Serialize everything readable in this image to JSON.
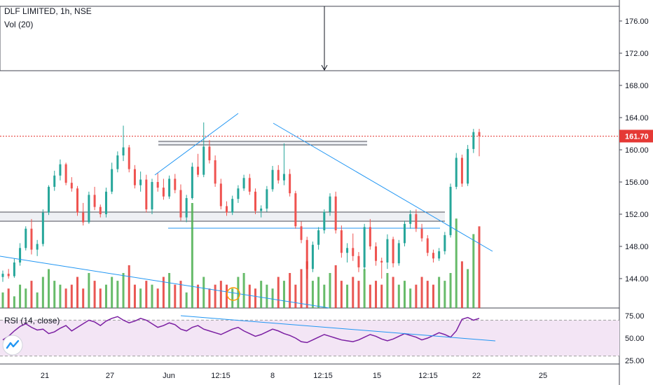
{
  "header": {
    "symbol_line": "DLF LIMITED, 1h, NSE",
    "volume_indicator": "Vol (20)"
  },
  "rsi": {
    "label": "RSI (14, close)",
    "levels": [
      "75.00",
      "50.00",
      "25.00"
    ]
  },
  "price_axis": {
    "ticks": [
      "176.00",
      "172.00",
      "168.00",
      "164.00",
      "160.00",
      "156.00",
      "152.00",
      "148.00",
      "144.00"
    ],
    "last_price": "161.70"
  },
  "time_axis": {
    "ticks": [
      "21",
      "27",
      "Jun",
      "12:15",
      "8",
      "12:15",
      "15",
      "12:15",
      "22",
      "25"
    ]
  },
  "colors": {
    "up": "#26a69a",
    "down": "#ef5350",
    "vol_up": "#4caf50",
    "vol_down": "#e53935",
    "trendline": "#2196f3",
    "rsi": "#7b1fa2",
    "rsi_band": "#f3e5f5",
    "last_price": "#e53935"
  },
  "icons": {
    "logo": "tradingview-logo-icon"
  },
  "chart_data": {
    "type": "candlestick",
    "symbol": "DLF LIMITED",
    "interval": "1h",
    "exchange": "NSE",
    "ylim": [
      142,
      178
    ],
    "last_price": 161.7,
    "candles": [
      [
        144.2,
        145.0,
        143.6,
        144.6
      ],
      [
        144.6,
        145.2,
        144.0,
        144.3
      ],
      [
        144.3,
        146.5,
        144.1,
        146.0
      ],
      [
        146.0,
        148.4,
        145.6,
        147.8
      ],
      [
        147.8,
        150.5,
        147.5,
        150.2
      ],
      [
        150.2,
        151.4,
        147.0,
        147.6
      ],
      [
        147.6,
        148.8,
        146.8,
        148.3
      ],
      [
        148.3,
        152.6,
        148.0,
        152.2
      ],
      [
        152.2,
        155.6,
        151.9,
        155.4
      ],
      [
        155.4,
        157.4,
        154.9,
        156.8
      ],
      [
        156.8,
        158.8,
        156.2,
        158.2
      ],
      [
        158.2,
        158.4,
        155.6,
        155.9
      ],
      [
        155.9,
        156.6,
        154.8,
        155.2
      ],
      [
        155.2,
        155.5,
        151.8,
        152.2
      ],
      [
        152.2,
        153.4,
        150.6,
        151.0
      ],
      [
        151.0,
        154.8,
        150.8,
        154.4
      ],
      [
        154.4,
        155.4,
        152.5,
        152.9
      ],
      [
        152.9,
        153.2,
        151.6,
        152.0
      ],
      [
        152.0,
        155.3,
        151.6,
        154.8
      ],
      [
        154.8,
        158.4,
        154.5,
        157.6
      ],
      [
        157.6,
        159.8,
        157.2,
        159.3
      ],
      [
        159.3,
        163.0,
        158.6,
        160.3
      ],
      [
        160.3,
        160.6,
        157.2,
        157.6
      ],
      [
        157.6,
        158.1,
        155.2,
        155.6
      ],
      [
        155.6,
        157.3,
        154.8,
        156.3
      ],
      [
        156.3,
        156.9,
        152.2,
        152.6
      ],
      [
        152.6,
        156.4,
        152.0,
        156.0
      ],
      [
        156.0,
        157.1,
        154.8,
        155.3
      ],
      [
        155.3,
        156.4,
        153.8,
        154.2
      ],
      [
        154.2,
        156.8,
        153.9,
        156.4
      ],
      [
        156.4,
        157.0,
        154.6,
        155.0
      ],
      [
        155.0,
        155.7,
        151.2,
        151.6
      ],
      [
        151.6,
        154.4,
        151.0,
        154.0
      ],
      [
        154.0,
        158.4,
        153.8,
        157.9
      ],
      [
        157.9,
        159.5,
        156.6,
        156.9
      ],
      [
        156.9,
        163.4,
        156.6,
        160.4
      ],
      [
        160.4,
        161.2,
        158.3,
        158.7
      ],
      [
        158.7,
        159.3,
        155.4,
        155.8
      ],
      [
        155.8,
        156.4,
        152.6,
        153.0
      ],
      [
        153.0,
        153.6,
        151.8,
        152.2
      ],
      [
        152.2,
        154.3,
        151.9,
        153.9
      ],
      [
        153.9,
        155.6,
        153.4,
        155.2
      ],
      [
        155.2,
        156.9,
        154.9,
        156.5
      ],
      [
        156.5,
        157.0,
        154.4,
        154.8
      ],
      [
        154.8,
        155.2,
        152.0,
        152.4
      ],
      [
        152.4,
        153.1,
        151.6,
        152.7
      ],
      [
        152.7,
        155.5,
        152.3,
        155.1
      ],
      [
        155.1,
        158.0,
        154.8,
        157.5
      ],
      [
        157.5,
        158.1,
        155.8,
        156.2
      ],
      [
        156.2,
        160.8,
        155.6,
        157.0
      ],
      [
        157.0,
        157.6,
        154.2,
        154.6
      ],
      [
        154.6,
        154.9,
        150.2,
        150.5
      ],
      [
        150.5,
        151.1,
        148.4,
        148.8
      ],
      [
        148.8,
        149.2,
        144.0,
        145.2
      ],
      [
        145.2,
        148.6,
        144.8,
        148.2
      ],
      [
        148.2,
        150.4,
        147.6,
        150.0
      ],
      [
        150.0,
        152.6,
        149.6,
        152.3
      ],
      [
        152.3,
        154.6,
        151.8,
        154.2
      ],
      [
        154.2,
        154.8,
        149.6,
        150.0
      ],
      [
        150.0,
        150.6,
        146.6,
        147.2
      ],
      [
        147.2,
        148.4,
        146.0,
        147.8
      ],
      [
        147.8,
        149.6,
        146.2,
        146.8
      ],
      [
        146.8,
        147.3,
        144.8,
        145.4
      ],
      [
        145.4,
        150.8,
        145.0,
        150.4
      ],
      [
        150.4,
        151.4,
        147.6,
        148.0
      ],
      [
        148.0,
        148.5,
        145.6,
        146.2
      ],
      [
        146.2,
        146.6,
        144.0,
        146.0
      ],
      [
        146.0,
        149.5,
        145.2,
        148.9
      ],
      [
        148.9,
        149.2,
        145.4,
        145.9
      ],
      [
        145.9,
        148.8,
        145.6,
        148.4
      ],
      [
        148.4,
        151.2,
        148.0,
        150.8
      ],
      [
        150.8,
        152.5,
        150.2,
        152.0
      ],
      [
        152.0,
        152.6,
        149.8,
        150.2
      ],
      [
        150.2,
        150.8,
        148.6,
        149.0
      ],
      [
        149.0,
        149.4,
        146.8,
        147.2
      ],
      [
        147.2,
        147.6,
        146.0,
        146.5
      ],
      [
        146.5,
        147.8,
        146.2,
        147.4
      ],
      [
        147.4,
        149.8,
        147.0,
        149.4
      ],
      [
        149.4,
        155.8,
        149.1,
        155.4
      ],
      [
        155.4,
        159.6,
        155.1,
        159.0
      ],
      [
        159.0,
        159.4,
        155.4,
        155.8
      ],
      [
        155.8,
        160.6,
        155.5,
        160.1
      ],
      [
        160.1,
        162.6,
        159.6,
        162.2
      ],
      [
        162.2,
        162.6,
        159.2,
        161.7
      ]
    ],
    "volume": [
      4,
      5,
      3,
      6,
      5,
      7,
      4,
      8,
      10,
      7,
      6,
      5,
      6,
      8,
      5,
      9,
      7,
      5,
      6,
      8,
      7,
      9,
      11,
      6,
      5,
      7,
      6,
      5,
      8,
      9,
      6,
      7,
      4,
      27,
      6,
      8,
      5,
      6,
      7,
      6,
      5,
      8,
      9,
      6,
      5,
      7,
      6,
      5,
      8,
      7,
      9,
      6,
      10,
      12,
      7,
      8,
      6,
      9,
      11,
      7,
      6,
      8,
      7,
      10,
      6,
      7,
      6,
      9,
      8,
      6,
      7,
      5,
      6,
      8,
      7,
      6,
      8,
      7,
      9,
      23,
      12,
      10,
      19,
      21
    ],
    "rsi": [
      48,
      52,
      58,
      63,
      66,
      62,
      59,
      60,
      55,
      57,
      61,
      64,
      58,
      62,
      66,
      70,
      68,
      64,
      69,
      72,
      74,
      70,
      67,
      69,
      72,
      70,
      66,
      62,
      64,
      67,
      65,
      60,
      58,
      62,
      64,
      60,
      58,
      56,
      54,
      57,
      60,
      62,
      58,
      55,
      52,
      54,
      57,
      60,
      58,
      55,
      53,
      50,
      46,
      45,
      48,
      51,
      54,
      52,
      50,
      48,
      47,
      46,
      48,
      51,
      54,
      52,
      49,
      47,
      49,
      52,
      55,
      53,
      51,
      48,
      50,
      53,
      56,
      54,
      51,
      58,
      71,
      73,
      70,
      72
    ],
    "horizontal_levels": [
      152.4,
      151.2,
      150.2,
      161.2,
      160.6
    ],
    "trendlines": [
      {
        "from": [
          147,
          151.2
        ],
        "to": [
          164.5,
          160.0
        ]
      },
      {
        "from": [
          163.4,
          147.5
        ],
        "to": [
          163.5,
          147.5
        ]
      }
    ]
  }
}
